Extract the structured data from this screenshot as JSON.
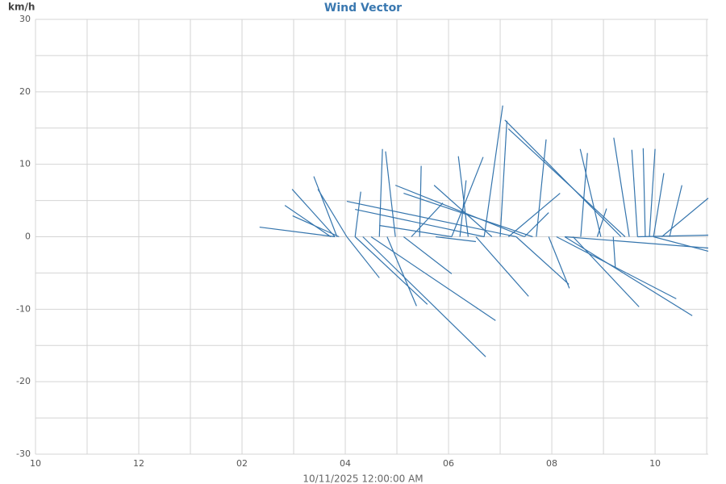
{
  "chart_data": {
    "type": "vector",
    "title": "Wind Vector",
    "y_label": "km/h",
    "x_label": "10/11/2025 12:00:00 AM",
    "color": "#3575ad",
    "xlim": [
      0,
      13.03
    ],
    "xticks": [
      {
        "value": 0,
        "label": "10"
      },
      {
        "value": 2,
        "label": "12"
      },
      {
        "value": 4,
        "label": "02"
      },
      {
        "value": 6,
        "label": "04"
      },
      {
        "value": 8,
        "label": "06"
      },
      {
        "value": 10,
        "label": "08"
      },
      {
        "value": 12,
        "label": "10"
      }
    ],
    "x_minor_grid": [
      1,
      3,
      5,
      7,
      9,
      11,
      13
    ],
    "ylim": [
      -30,
      30
    ],
    "yticks": [
      -30,
      -20,
      -10,
      0,
      10,
      20,
      30
    ],
    "y_minor_grid": [
      -25,
      -15,
      -5,
      5,
      15,
      25
    ],
    "grid": true,
    "x": [
      5.8,
      5.72,
      5.8,
      5.88,
      5.84,
      6.03,
      6.19,
      6.03,
      6.19,
      6.34,
      6.5,
      6.66,
      6.81,
      6.97,
      7.13,
      7.28,
      7.44,
      7.75,
      8.06,
      8.22,
      8.38,
      8.53,
      8.69,
      8.84,
      9.0,
      9.16,
      9.31,
      9.47,
      9.7,
      9.94,
      10.09,
      10.25,
      10.41,
      10.56,
      10.88,
      10.95,
      11.19,
      11.34,
      11.42,
      11.5,
      11.66,
      11.81,
      11.89,
      11.97,
      12.13,
      12.28,
      11.97,
      10.25,
      11.66,
      9.63,
      9.47,
      9.31,
      8.69,
      8.06
    ],
    "x_tip": [
      4.34,
      4.83,
      4.97,
      4.98,
      5.39,
      5.47,
      6.3,
      6.66,
      7.59,
      8.72,
      8.91,
      6.72,
      7.38,
      6.78,
      8.06,
      7.89,
      7.47,
      8.53,
      8.67,
      8.34,
      8.19,
      9.55,
      9.05,
      7.72,
      9.13,
      10.16,
      10.33,
      9.94,
      9.89,
      10.34,
      12.41,
      12.72,
      11.69,
      10.69,
      11.06,
      10.55,
      11.23,
      9.09,
      9.16,
      11.2,
      11.55,
      11.77,
      12.0,
      12.17,
      13.03,
      12.52,
      13.03,
      13.03,
      13.03,
      7.13,
      6.97,
      6.03,
      6.19,
      6.66
    ],
    "y_tip": [
      1.33,
      4.33,
      6.56,
      2.89,
      8.33,
      6.56,
      6.22,
      -5.67,
      -9.33,
      -16.56,
      -11.56,
      12.11,
      -9.56,
      11.78,
      -5.11,
      4.67,
      9.78,
      -0.67,
      11.0,
      7.78,
      11.11,
      -8.22,
      18.11,
      7.11,
      16.0,
      6.0,
      -6.56,
      3.33,
      13.44,
      -7.11,
      -8.56,
      -10.89,
      -9.67,
      11.56,
      3.89,
      12.11,
      -4.22,
      16.11,
      14.89,
      13.67,
      12.0,
      12.22,
      12.11,
      8.78,
      5.33,
      7.11,
      -2.0,
      -1.56,
      0.22,
      6.0,
      7.11,
      4.89,
      3.78,
      1.56
    ]
  }
}
